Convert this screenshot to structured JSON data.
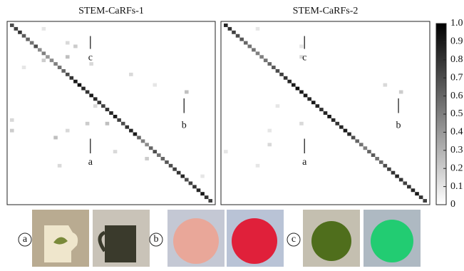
{
  "chart_data": [
    {
      "type": "heatmap",
      "title": "STEM-CaRFs-1",
      "diagonal": [
        0.7,
        0.75,
        0.8,
        0.65,
        0.6,
        0.55,
        0.7,
        0.45,
        0.5,
        0.4,
        0.45,
        0.5,
        0.55,
        0.6,
        0.7,
        0.8,
        0.9,
        0.95,
        0.85,
        0.8,
        0.9,
        0.85,
        0.8,
        0.75,
        0.8,
        0.85,
        0.9,
        0.75,
        0.7,
        0.8,
        0.85,
        0.9,
        0.6,
        0.5,
        0.45,
        0.6,
        0.7,
        0.55,
        0.6,
        0.65,
        0.7,
        0.75,
        0.8,
        0.85,
        0.7,
        0.75,
        0.8,
        0.85,
        0.9,
        0.8,
        0.75
      ],
      "off_diagonal": [
        {
          "row": 1,
          "col": 8,
          "value": 0.1
        },
        {
          "row": 5,
          "col": 14,
          "value": 0.15
        },
        {
          "row": 6,
          "col": 16,
          "value": 0.2
        },
        {
          "row": 9,
          "col": 14,
          "value": 0.25
        },
        {
          "row": 10,
          "col": 8,
          "value": 0.2
        },
        {
          "row": 11,
          "col": 20,
          "value": 0.15
        },
        {
          "row": 12,
          "col": 3,
          "value": 0.1
        },
        {
          "row": 14,
          "col": 30,
          "value": 0.15
        },
        {
          "row": 17,
          "col": 36,
          "value": 0.1
        },
        {
          "row": 19,
          "col": 44,
          "value": 0.25
        },
        {
          "row": 23,
          "col": 21,
          "value": 0.15
        },
        {
          "row": 27,
          "col": 0,
          "value": 0.15
        },
        {
          "row": 28,
          "col": 19,
          "value": 0.2
        },
        {
          "row": 28,
          "col": 24,
          "value": 0.25
        },
        {
          "row": 30,
          "col": 0,
          "value": 0.2
        },
        {
          "row": 30,
          "col": 14,
          "value": 0.15
        },
        {
          "row": 32,
          "col": 11,
          "value": 0.25
        },
        {
          "row": 36,
          "col": 26,
          "value": 0.15
        },
        {
          "row": 38,
          "col": 34,
          "value": 0.2
        },
        {
          "row": 40,
          "col": 12,
          "value": 0.15
        },
        {
          "row": 43,
          "col": 48,
          "value": 0.1
        }
      ],
      "annotations": [
        "c",
        "b",
        "a"
      ]
    },
    {
      "type": "heatmap",
      "title": "STEM-CaRFs-2",
      "diagonal": [
        0.85,
        0.8,
        0.75,
        0.7,
        0.65,
        0.6,
        0.55,
        0.55,
        0.5,
        0.5,
        0.55,
        0.6,
        0.65,
        0.7,
        0.75,
        0.8,
        0.85,
        0.9,
        0.95,
        0.9,
        0.9,
        0.85,
        0.9,
        0.85,
        0.8,
        0.85,
        0.9,
        0.85,
        0.8,
        0.85,
        0.9,
        0.85,
        0.7,
        0.6,
        0.55,
        0.5,
        0.6,
        0.65,
        0.55,
        0.6,
        0.7,
        0.75,
        0.8,
        0.85,
        0.8,
        0.75,
        0.8,
        0.85,
        0.9,
        0.8,
        0.75
      ],
      "off_diagonal": [
        {
          "row": 1,
          "col": 8,
          "value": 0.1
        },
        {
          "row": 6,
          "col": 19,
          "value": 0.1
        },
        {
          "row": 9,
          "col": 19,
          "value": 0.15
        },
        {
          "row": 17,
          "col": 40,
          "value": 0.15
        },
        {
          "row": 19,
          "col": 44,
          "value": 0.2
        },
        {
          "row": 23,
          "col": 13,
          "value": 0.1
        },
        {
          "row": 28,
          "col": 19,
          "value": 0.15
        },
        {
          "row": 30,
          "col": 11,
          "value": 0.1
        },
        {
          "row": 34,
          "col": 11,
          "value": 0.15
        },
        {
          "row": 36,
          "col": 0,
          "value": 0.1
        },
        {
          "row": 40,
          "col": 8,
          "value": 0.1
        }
      ],
      "annotations": [
        "c",
        "b",
        "a"
      ]
    }
  ],
  "colorbar": {
    "zlim": [
      0,
      1
    ],
    "ticks": [
      {
        "value": 1,
        "label": "1.0"
      },
      0.9,
      0.8,
      0.7,
      0.6,
      0.5,
      0.4,
      0.3,
      0.2,
      0.1,
      0
    ]
  },
  "examples": [
    "a",
    "b",
    "c"
  ]
}
